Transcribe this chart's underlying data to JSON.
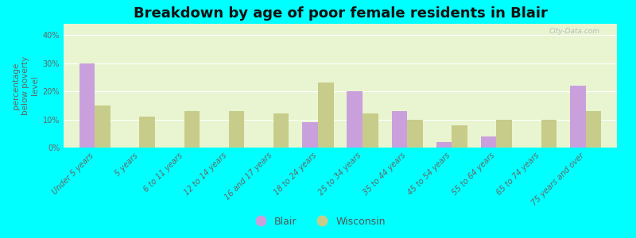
{
  "title": "Breakdown by age of poor female residents in Blair",
  "ylabel": "percentage\nbelow poverty\nlevel",
  "categories": [
    "Under 5 years",
    "5 years",
    "6 to 11 years",
    "12 to 14 years",
    "16 and 17 years",
    "18 to 24 years",
    "25 to 34 years",
    "35 to 44 years",
    "45 to 54 years",
    "55 to 64 years",
    "65 to 74 years",
    "75 years and over"
  ],
  "blair_values": [
    30,
    0,
    0,
    0,
    0,
    9,
    20,
    13,
    2,
    4,
    0,
    22
  ],
  "wisconsin_values": [
    15,
    11,
    13,
    13,
    12,
    23,
    12,
    10,
    8,
    10,
    10,
    13
  ],
  "blair_color": "#c9a0dc",
  "wisconsin_color": "#c8cc8a",
  "plot_bg_top": "#f5fce8",
  "plot_bg_bottom": "#e8f5d0",
  "outer_background": "#00ffff",
  "ylim": [
    0,
    44
  ],
  "yticks": [
    0,
    10,
    20,
    30,
    40
  ],
  "ytick_labels": [
    "0%",
    "10%",
    "20%",
    "30%",
    "40%"
  ],
  "bar_width": 0.35,
  "legend_blair": "Blair",
  "legend_wisconsin": "Wisconsin",
  "title_fontsize": 13,
  "axis_label_fontsize": 7.5,
  "tick_fontsize": 7
}
